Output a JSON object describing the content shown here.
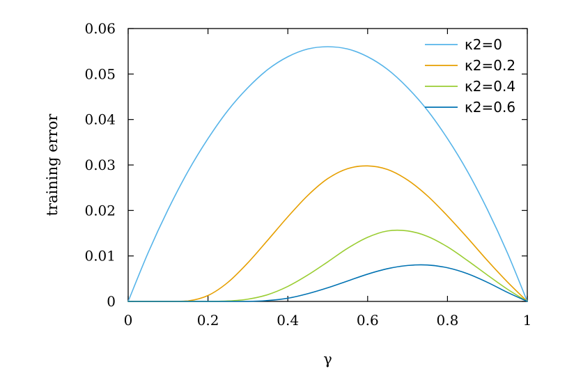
{
  "chart_data": {
    "type": "line",
    "title": "",
    "xlabel": "γ",
    "ylabel": "training error",
    "xlim": [
      0,
      1
    ],
    "ylim": [
      0,
      0.06
    ],
    "grid": false,
    "legend_position": "top-right",
    "x_ticks": [
      "0",
      "0.2",
      "0.4",
      "0.6",
      "0.8",
      "1"
    ],
    "y_ticks": [
      "0",
      "0.01",
      "0.02",
      "0.03",
      "0.04",
      "0.05",
      "0.06"
    ],
    "series": [
      {
        "name": "κ2=0",
        "color": "#56B4E9",
        "x": [
          0,
          0.05,
          0.1,
          0.15,
          0.2,
          0.25,
          0.3,
          0.35,
          0.4,
          0.45,
          0.5,
          0.55,
          0.6,
          0.65,
          0.7,
          0.75,
          0.8,
          0.85,
          0.9,
          0.95,
          1
        ],
        "y": [
          0,
          0.0107,
          0.0202,
          0.0286,
          0.0358,
          0.042,
          0.047,
          0.051,
          0.0538,
          0.0555,
          0.056,
          0.0555,
          0.0538,
          0.051,
          0.047,
          0.042,
          0.0358,
          0.0286,
          0.0202,
          0.0107,
          0
        ]
      },
      {
        "name": "κ2=0.2",
        "color": "#E69F00",
        "x": [
          0,
          0.05,
          0.1,
          0.15,
          0.2,
          0.25,
          0.3,
          0.35,
          0.4,
          0.45,
          0.5,
          0.55,
          0.6,
          0.65,
          0.7,
          0.75,
          0.8,
          0.85,
          0.9,
          0.95,
          1
        ],
        "y": [
          0,
          0,
          0,
          0.0001,
          0.0013,
          0.0042,
          0.0085,
          0.0135,
          0.0186,
          0.0233,
          0.027,
          0.0292,
          0.0298,
          0.029,
          0.0267,
          0.0232,
          0.0188,
          0.014,
          0.009,
          0.0043,
          0
        ]
      },
      {
        "name": "κ2=0.4",
        "color": "#9ACD32",
        "x": [
          0,
          0.05,
          0.1,
          0.15,
          0.2,
          0.25,
          0.3,
          0.35,
          0.4,
          0.45,
          0.5,
          0.55,
          0.6,
          0.65,
          0.7,
          0.75,
          0.8,
          0.85,
          0.9,
          0.95,
          1
        ],
        "y": [
          0,
          0,
          0,
          0,
          0,
          0.0001,
          0.0005,
          0.0015,
          0.0033,
          0.0058,
          0.0087,
          0.0117,
          0.0141,
          0.0155,
          0.0155,
          0.0143,
          0.012,
          0.009,
          0.0058,
          0.0027,
          0
        ]
      },
      {
        "name": "κ2=0.6",
        "color": "#0072B2",
        "x": [
          0,
          0.05,
          0.1,
          0.15,
          0.2,
          0.25,
          0.3,
          0.35,
          0.4,
          0.45,
          0.5,
          0.55,
          0.6,
          0.65,
          0.7,
          0.75,
          0.8,
          0.85,
          0.9,
          0.95,
          1
        ],
        "y": [
          0,
          0,
          0,
          0,
          0,
          0,
          0,
          0.0002,
          0.0007,
          0.0017,
          0.003,
          0.0045,
          0.006,
          0.0072,
          0.0079,
          0.008,
          0.0074,
          0.0061,
          0.0042,
          0.002,
          0
        ]
      }
    ]
  }
}
